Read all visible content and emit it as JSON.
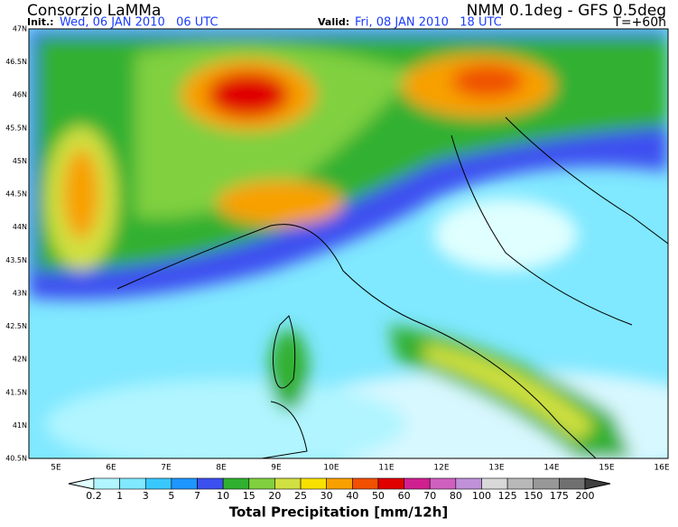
{
  "header": {
    "title": "Consorzio LaMMa",
    "init_label": "Init.:",
    "init_value": "Wed, 06 JAN 2010   06 UTC",
    "model": "NMM 0.1deg - GFS 0.5deg",
    "valid_label": "Valid:",
    "valid_value": "Fri, 08 JAN 2010   18 UTC",
    "lead": "T=+60h"
  },
  "map": {
    "lat_labels": [
      "47N",
      "46.5N",
      "46N",
      "45.5N",
      "45N",
      "44.5N",
      "44N",
      "43.5N",
      "43N",
      "42.5N",
      "42N",
      "41.5N",
      "41N",
      "40.5N"
    ],
    "lon_labels": [
      "5E",
      "6E",
      "7E",
      "8E",
      "9E",
      "10E",
      "11E",
      "12E",
      "13E",
      "14E",
      "15E",
      "16E"
    ]
  },
  "colorbar": {
    "labels": [
      "0.2",
      "1",
      "3",
      "5",
      "7",
      "10",
      "15",
      "20",
      "25",
      "30",
      "40",
      "50",
      "60",
      "70",
      "80",
      "100",
      "125",
      "150",
      "175",
      "200"
    ],
    "colors": [
      "#e0ffff",
      "#b0f5ff",
      "#80e8ff",
      "#38c8ff",
      "#1e96ff",
      "#3c50f0",
      "#30b030",
      "#80d040",
      "#d0e040",
      "#f8e000",
      "#f8a000",
      "#f05000",
      "#e00000",
      "#d02090",
      "#d060c0",
      "#c090d8",
      "#d8d8d8",
      "#b8b8b8",
      "#989898",
      "#707070",
      "#404040"
    ],
    "title": "Total Precipitation [mm/12h]"
  }
}
